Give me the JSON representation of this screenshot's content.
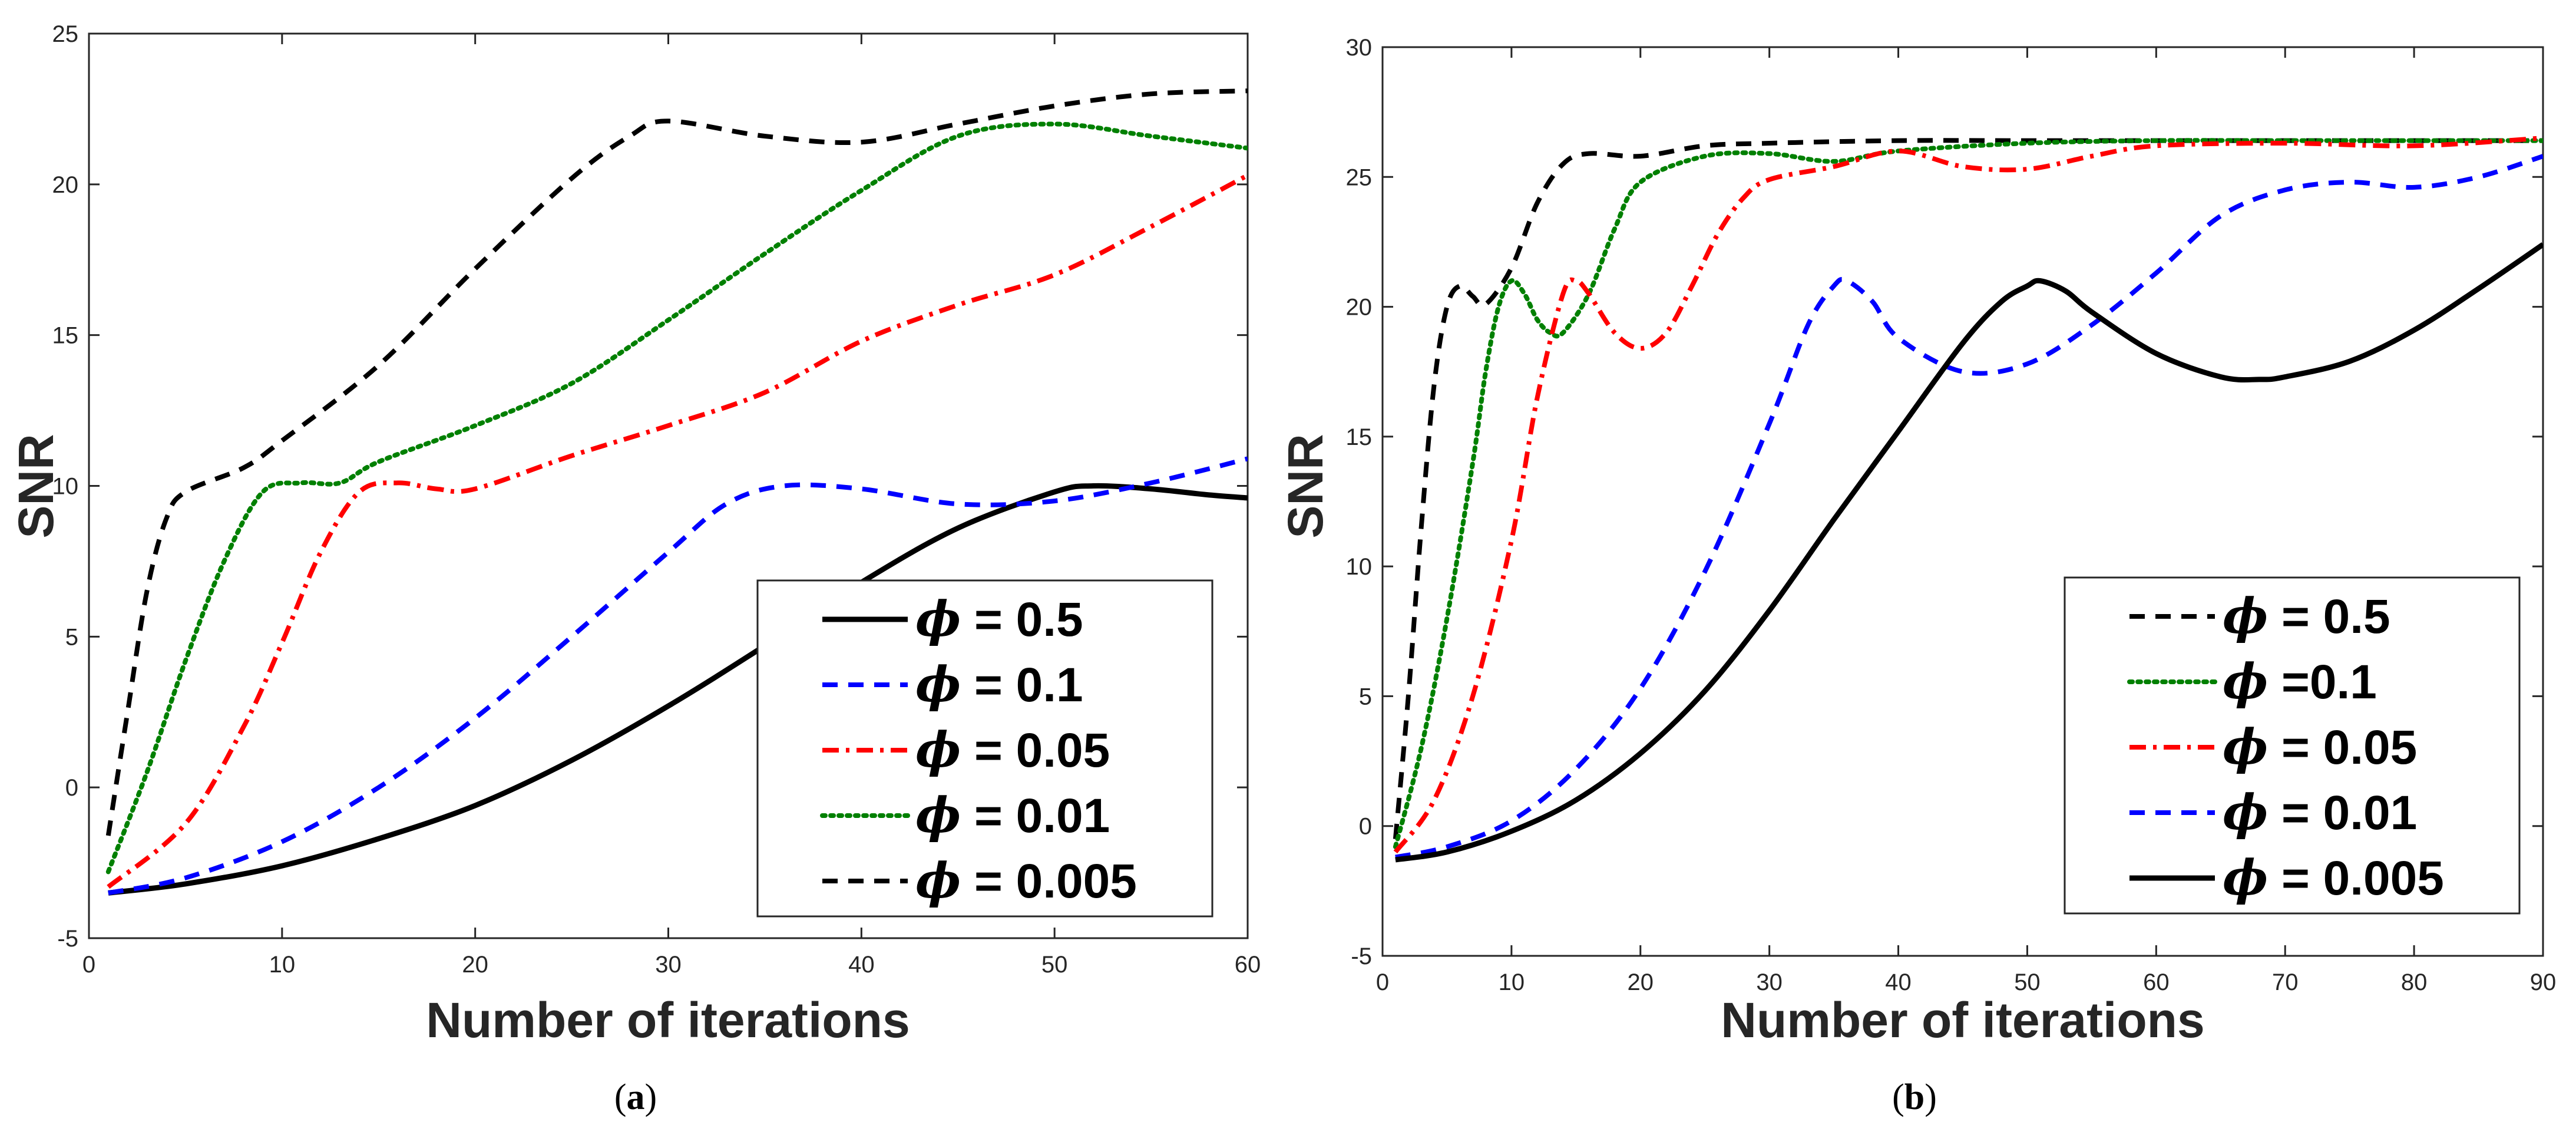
{
  "chart_data": [
    {
      "id": "a",
      "type": "line",
      "caption_label": "a",
      "title": "",
      "xlabel": "Number of iterations",
      "ylabel": "SNR",
      "xlim": [
        0,
        60
      ],
      "ylim": [
        -5,
        25
      ],
      "xticks": [
        0,
        10,
        20,
        30,
        40,
        50,
        60
      ],
      "yticks": [
        -5,
        0,
        5,
        10,
        15,
        20,
        25
      ],
      "legend_position": "bottom-right",
      "series": [
        {
          "name": "ϕ = 0.5",
          "color": "#000000",
          "style": "solid",
          "x": [
            1,
            5,
            10,
            15,
            20,
            25,
            30,
            35,
            40,
            45,
            50,
            52,
            55,
            58,
            60
          ],
          "y": [
            -3.5,
            -3.2,
            -2.6,
            -1.7,
            -0.6,
            0.9,
            2.7,
            4.7,
            6.8,
            8.6,
            9.8,
            10.0,
            9.9,
            9.7,
            9.6
          ]
        },
        {
          "name": "ϕ = 0.1",
          "color": "#0000ff",
          "style": "dashed",
          "x": [
            1,
            5,
            10,
            15,
            20,
            25,
            30,
            33,
            36,
            40,
            45,
            50,
            55,
            60
          ],
          "y": [
            -3.5,
            -3.0,
            -1.8,
            0.0,
            2.3,
            5.0,
            7.8,
            9.4,
            10.0,
            9.9,
            9.4,
            9.5,
            10.1,
            10.9
          ]
        },
        {
          "name": "ϕ = 0.05",
          "color": "#ff0000",
          "style": "dashdot",
          "x": [
            1,
            5,
            8,
            10,
            12,
            14,
            16,
            18,
            20,
            25,
            30,
            35,
            40,
            45,
            50,
            55,
            60
          ],
          "y": [
            -3.3,
            -1.2,
            2.0,
            4.8,
            7.8,
            9.8,
            10.1,
            9.9,
            9.9,
            11.0,
            12.0,
            13.1,
            14.8,
            16.0,
            17.0,
            18.6,
            20.3
          ]
        },
        {
          "name": "ϕ = 0.01",
          "color": "#008000",
          "style": "dotted",
          "x": [
            1,
            3,
            5,
            7,
            9,
            11,
            13,
            15,
            20,
            25,
            30,
            35,
            40,
            45,
            50,
            55,
            60
          ],
          "y": [
            -2.8,
            0.5,
            4.2,
            7.5,
            9.8,
            10.1,
            10.1,
            10.8,
            12.0,
            13.4,
            15.5,
            17.7,
            19.8,
            21.6,
            22.0,
            21.6,
            21.2
          ]
        },
        {
          "name": "ϕ = 0.005",
          "color": "#000000",
          "style": "dashed",
          "x": [
            1,
            2,
            3,
            4,
            5,
            8,
            10,
            15,
            20,
            25,
            28,
            30,
            35,
            40,
            45,
            50,
            55,
            60
          ],
          "y": [
            -1.6,
            2.5,
            6.5,
            8.9,
            9.8,
            10.6,
            11.5,
            14.0,
            17.2,
            20.2,
            21.6,
            22.1,
            21.6,
            21.4,
            22.0,
            22.6,
            23.0,
            23.1
          ]
        }
      ]
    },
    {
      "id": "b",
      "type": "line",
      "caption_label": "b",
      "title": "",
      "xlabel": "Number of iterations",
      "ylabel": "SNR",
      "xlim": [
        0,
        90
      ],
      "ylim": [
        -5,
        30
      ],
      "xticks": [
        0,
        10,
        20,
        30,
        40,
        50,
        60,
        70,
        80,
        90
      ],
      "yticks": [
        -5,
        0,
        5,
        10,
        15,
        20,
        25,
        30
      ],
      "legend_position": "bottom-right",
      "series": [
        {
          "name": "ϕ = 0.5",
          "color": "#000000",
          "style": "dashed",
          "x": [
            1,
            2,
            3,
            4,
            5,
            6,
            7,
            8,
            10,
            12,
            14,
            16,
            20,
            25,
            30,
            40,
            50,
            60,
            70,
            80,
            90
          ],
          "y": [
            -0.5,
            5.0,
            11.5,
            17.0,
            20.0,
            20.8,
            20.4,
            20.1,
            21.5,
            24.0,
            25.5,
            25.9,
            25.8,
            26.2,
            26.3,
            26.4,
            26.4,
            26.4,
            26.4,
            26.4,
            26.4
          ]
        },
        {
          "name": "ϕ =0.1",
          "color": "#008000",
          "style": "dotted",
          "x": [
            1,
            3,
            5,
            7,
            8,
            9,
            10,
            11,
            12,
            13,
            14,
            16,
            18,
            20,
            25,
            30,
            35,
            40,
            50,
            60,
            70,
            80,
            90
          ],
          "y": [
            -0.8,
            3.0,
            8.0,
            14.0,
            17.5,
            20.0,
            21.0,
            20.5,
            19.5,
            19.0,
            19.0,
            20.5,
            23.0,
            24.8,
            25.8,
            25.9,
            25.6,
            26.0,
            26.3,
            26.4,
            26.4,
            26.4,
            26.4
          ]
        },
        {
          "name": "ϕ = 0.05",
          "color": "#ff0000",
          "style": "dashdot",
          "x": [
            1,
            4,
            7,
            10,
            12,
            14,
            15,
            16,
            18,
            20,
            22,
            24,
            26,
            28,
            30,
            35,
            40,
            45,
            50,
            55,
            60,
            70,
            80,
            90
          ],
          "y": [
            -1.0,
            1.0,
            5.0,
            11.0,
            16.5,
            20.5,
            21.0,
            20.5,
            19.0,
            18.4,
            19.0,
            20.8,
            22.8,
            24.2,
            24.9,
            25.4,
            26.0,
            25.4,
            25.3,
            25.8,
            26.2,
            26.3,
            26.2,
            26.5
          ]
        },
        {
          "name": "ϕ = 0.01",
          "color": "#0000ff",
          "style": "dashed",
          "x": [
            1,
            5,
            10,
            15,
            20,
            25,
            30,
            33,
            35,
            36,
            38,
            40,
            45,
            50,
            55,
            60,
            65,
            70,
            75,
            80,
            85,
            90
          ],
          "y": [
            -1.2,
            -0.8,
            0.2,
            2.2,
            5.3,
            9.8,
            15.5,
            19.3,
            20.8,
            21.0,
            20.2,
            18.8,
            17.5,
            17.8,
            19.3,
            21.3,
            23.5,
            24.5,
            24.8,
            24.6,
            25.0,
            25.8
          ]
        },
        {
          "name": "ϕ = 0.005",
          "color": "#000000",
          "style": "solid",
          "x": [
            1,
            5,
            10,
            15,
            20,
            25,
            30,
            35,
            40,
            45,
            48,
            50,
            51,
            53,
            55,
            60,
            65,
            68,
            70,
            75,
            80,
            85,
            90
          ],
          "y": [
            -1.3,
            -1.0,
            -0.2,
            1.0,
            2.8,
            5.2,
            8.3,
            11.8,
            15.2,
            18.6,
            20.2,
            20.8,
            21.0,
            20.6,
            19.8,
            18.2,
            17.3,
            17.2,
            17.3,
            17.9,
            19.1,
            20.7,
            22.4
          ]
        }
      ]
    }
  ]
}
